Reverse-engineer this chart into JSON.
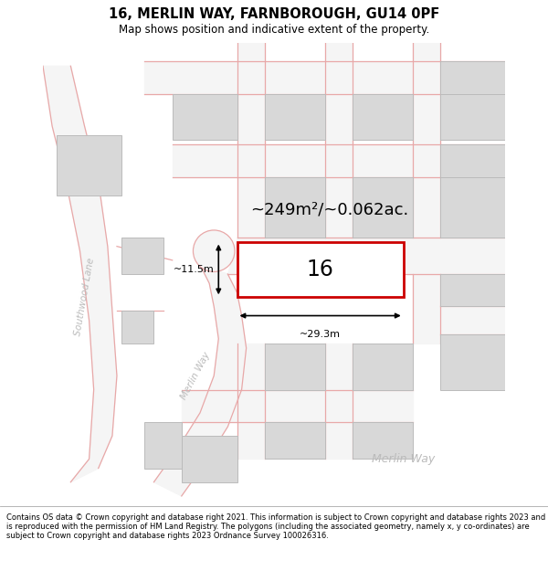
{
  "title": "16, MERLIN WAY, FARNBOROUGH, GU14 0PF",
  "subtitle": "Map shows position and indicative extent of the property.",
  "footer_lines": [
    "Contains OS data © Crown copyright and database right 2021. This information is subject to Crown copyright and database rights 2023 and is reproduced with the permission of",
    "HM Land Registry. The polygons (including the associated geometry, namely x, y co-ordinates) are subject to Crown copyright and database rights 2023 Ordnance Survey",
    "100026316."
  ],
  "area_label": "~249m²/~0.062ac.",
  "width_label": "~29.3m",
  "height_label": "~11.5m",
  "number_label": "16",
  "street_label_sw": "Southwood Lane",
  "street_label_mw1": "Merlin Way",
  "street_label_mw2": "Merlin Way",
  "bg_color": "#ffffff",
  "road_color": "#e8a8a8",
  "road_fill": "#f5f5f5",
  "building_fill": "#d8d8d8",
  "building_stroke": "#bbbbbb",
  "property_fill": "#ffffff",
  "property_stroke": "#cc0000",
  "street_text_color": "#bbbbbb",
  "title_fontsize": 10.5,
  "subtitle_fontsize": 8.5,
  "footer_fontsize": 6.0,
  "area_fontsize": 13,
  "num_fontsize": 17,
  "street_fontsize": 7.5,
  "merlin_way2_fontsize": 9
}
